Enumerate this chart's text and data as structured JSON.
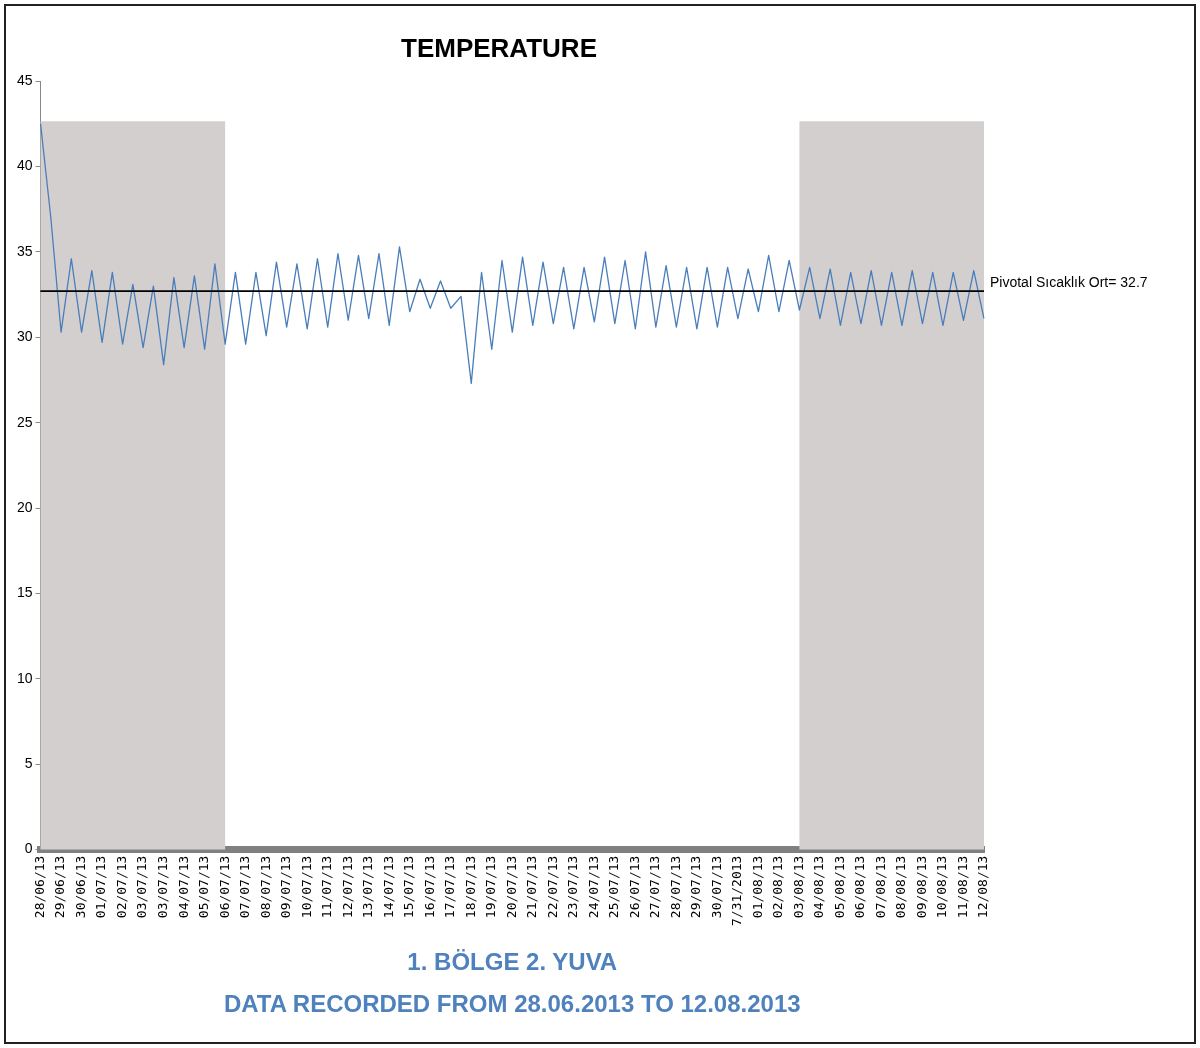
{
  "chart_data": {
    "type": "line",
    "title": "TEMPERATURE",
    "categories": [
      "28/06/13",
      null,
      "29/06/13",
      null,
      "30/06/13",
      null,
      "01/07/13",
      null,
      "02/07/13",
      null,
      "03/07/13",
      null,
      "03/07/13",
      null,
      "04/07/13",
      null,
      "05/07/13",
      null,
      "06/07/13",
      null,
      "07/07/13",
      null,
      "08/07/13",
      null,
      "09/07/13",
      null,
      "10/07/13",
      null,
      "11/07/13",
      null,
      "12/07/13",
      null,
      "13/07/13",
      null,
      "14/07/13",
      null,
      "15/07/13",
      null,
      "16/07/13",
      null,
      "17/07/13",
      null,
      "18/07/13",
      null,
      "19/07/13",
      null,
      "20/07/13",
      null,
      "21/07/13",
      null,
      "22/07/13",
      null,
      "23/07/13",
      null,
      "24/07/13",
      null,
      "25/07/13",
      null,
      "26/07/13",
      null,
      "27/07/13",
      null,
      "28/07/13",
      null,
      "29/07/13",
      null,
      "30/07/13",
      null,
      "7/31/2013",
      null,
      "01/08/13",
      null,
      "02/08/13",
      null,
      "03/08/13",
      null,
      "04/08/13",
      null,
      "05/08/13",
      null,
      "06/08/13",
      null,
      "07/08/13",
      null,
      "08/08/13",
      null,
      "09/08/13",
      null,
      "10/08/13",
      null,
      "11/08/13",
      null,
      "12/08/13"
    ],
    "series": [
      {
        "color": "#4a7ebb",
        "values": [
          42.5,
          37,
          30.3,
          34.6,
          30.3,
          33.9,
          29.7,
          33.8,
          29.6,
          33.1,
          29.4,
          33.0,
          28.4,
          33.5,
          29.4,
          33.6,
          29.3,
          34.3,
          29.6,
          33.8,
          29.6,
          33.8,
          30.1,
          34.4,
          30.6,
          34.3,
          30.5,
          34.6,
          30.6,
          34.9,
          31.0,
          34.8,
          31.1,
          34.9,
          30.7,
          35.3,
          31.5,
          33.4,
          31.7,
          33.3,
          31.7,
          32.4,
          27.3,
          33.8,
          29.3,
          34.5,
          30.3,
          34.7,
          30.7,
          34.4,
          30.8,
          34.1,
          30.5,
          34.1,
          30.9,
          34.7,
          30.8,
          34.5,
          30.5,
          35.0,
          30.6,
          34.2,
          30.6,
          34.1,
          30.5,
          34.1,
          30.6,
          34.1,
          31.1,
          34.0,
          31.5,
          34.8,
          31.5,
          34.5,
          31.6,
          34.1,
          31.1,
          34.0,
          30.7,
          33.8,
          30.8,
          33.9,
          30.7,
          33.8,
          30.7,
          33.9,
          30.8,
          33.8,
          30.7,
          33.8,
          31.0,
          33.9,
          31.1
        ]
      }
    ],
    "ylim": [
      0,
      45
    ],
    "yticks": [
      0,
      5,
      10,
      15,
      20,
      25,
      30,
      35,
      40,
      45
    ],
    "grid": false,
    "legend": false,
    "marker": "none",
    "line_style": "solid",
    "ref_lines": [
      {
        "axis": "y",
        "value": 32.7,
        "label": "Pivotal Sıcaklık Ort= 32.7",
        "color": "#000000"
      }
    ],
    "bands": [
      {
        "axis": "x",
        "from": "28/06/13",
        "to": "06/07/13",
        "color": "#d3cfcf"
      },
      {
        "axis": "x",
        "from": "03/08/13",
        "to": "12/08/13",
        "color": "#d3cfcf"
      }
    ],
    "annotations": [
      "1. BÖLGE 2. YUVA",
      "DATA RECORDED FROM 28.06.2013 TO 12.08.2013"
    ]
  }
}
